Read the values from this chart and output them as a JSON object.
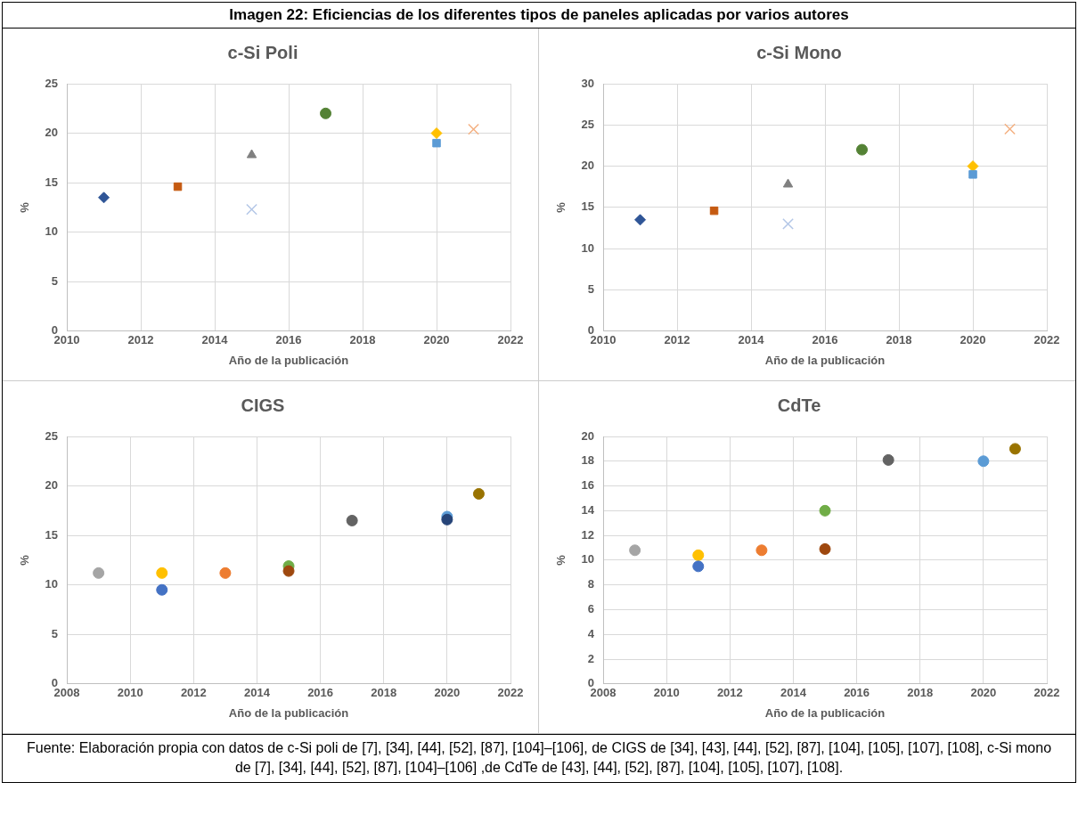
{
  "chart_data": [
    {
      "type": "other",
      "title": "Imagen  22: Eficiencias de los diferentes tipos de paneles aplicadas por varios autores",
      "annotations": [
        "Fuente: Elaboración propia con datos de c-Si poli de [7], [34], [44], [52], [87], [104]–[106], de CIGS de [34], [43], [44], [52], [87], [104], [105], [107], [108], c-Si mono de [7], [34], [44], [52], [87], [104]–[106] ,de CdTe de [43], [44], [52], [87], [104], [105], [107], [108]."
      ]
    },
    {
      "type": "scatter",
      "title": "c-Si Poli",
      "xlabel": "Año de la publicación",
      "ylabel": "%",
      "xlim": [
        2010,
        2022
      ],
      "xticks": [
        2010,
        2012,
        2014,
        2016,
        2018,
        2020,
        2022
      ],
      "ylim": [
        0,
        25
      ],
      "yticks": [
        0,
        5,
        10,
        15,
        20,
        25
      ],
      "grid": true,
      "series": [
        {
          "color": "#2f5597",
          "marker": "diamond",
          "x": [
            2011
          ],
          "values": [
            13.5
          ]
        },
        {
          "color": "#c55a11",
          "marker": "square",
          "x": [
            2013
          ],
          "values": [
            14.6
          ]
        },
        {
          "color": "#808080",
          "marker": "triangle",
          "x": [
            2015
          ],
          "values": [
            17.8
          ]
        },
        {
          "color": "#b4c7e7",
          "marker": "cross",
          "x": [
            2015
          ],
          "values": [
            12.3
          ]
        },
        {
          "color": "#548235",
          "marker": "circle",
          "x": [
            2017
          ],
          "values": [
            22
          ]
        },
        {
          "color": "#ffc000",
          "marker": "diamond",
          "x": [
            2020
          ],
          "values": [
            20
          ]
        },
        {
          "color": "#5b9bd5",
          "marker": "square",
          "x": [
            2020
          ],
          "values": [
            19
          ]
        },
        {
          "color": "#f4b183",
          "marker": "cross",
          "x": [
            2021
          ],
          "values": [
            20.4
          ]
        }
      ]
    },
    {
      "type": "scatter",
      "title": "c-Si Mono",
      "xlabel": "Año de la publicación",
      "ylabel": "%",
      "xlim": [
        2010,
        2022
      ],
      "xticks": [
        2010,
        2012,
        2014,
        2016,
        2018,
        2020,
        2022
      ],
      "ylim": [
        0,
        30
      ],
      "yticks": [
        0,
        5,
        10,
        15,
        20,
        25,
        30
      ],
      "grid": true,
      "series": [
        {
          "color": "#2f5597",
          "marker": "diamond",
          "x": [
            2011
          ],
          "values": [
            13.5
          ]
        },
        {
          "color": "#c55a11",
          "marker": "square",
          "x": [
            2013
          ],
          "values": [
            14.6
          ]
        },
        {
          "color": "#808080",
          "marker": "triangle",
          "x": [
            2015
          ],
          "values": [
            17.8
          ]
        },
        {
          "color": "#b4c7e7",
          "marker": "cross",
          "x": [
            2015
          ],
          "values": [
            13
          ]
        },
        {
          "color": "#548235",
          "marker": "circle",
          "x": [
            2017
          ],
          "values": [
            22
          ]
        },
        {
          "color": "#ffc000",
          "marker": "diamond",
          "x": [
            2020
          ],
          "values": [
            20
          ]
        },
        {
          "color": "#5b9bd5",
          "marker": "square",
          "x": [
            2020
          ],
          "values": [
            19
          ]
        },
        {
          "color": "#f4b183",
          "marker": "cross",
          "x": [
            2021
          ],
          "values": [
            24.5
          ]
        }
      ]
    },
    {
      "type": "scatter",
      "title": "CIGS",
      "xlabel": "Año de la publicación",
      "ylabel": "%",
      "xlim": [
        2008,
        2022
      ],
      "xticks": [
        2008,
        2010,
        2012,
        2014,
        2016,
        2018,
        2020,
        2022
      ],
      "ylim": [
        0,
        25
      ],
      "yticks": [
        0,
        5,
        10,
        15,
        20,
        25
      ],
      "grid": true,
      "marker": "circle",
      "series": [
        {
          "color": "#a5a5a5",
          "x": [
            2009
          ],
          "values": [
            11.2
          ]
        },
        {
          "color": "#ffc000",
          "x": [
            2011
          ],
          "values": [
            11.2
          ]
        },
        {
          "color": "#4472c4",
          "x": [
            2011
          ],
          "values": [
            9.5
          ]
        },
        {
          "color": "#ed7d31",
          "x": [
            2013
          ],
          "values": [
            11.2
          ]
        },
        {
          "color": "#70ad47",
          "x": [
            2015
          ],
          "values": [
            11.9
          ]
        },
        {
          "color": "#9e480e",
          "x": [
            2015
          ],
          "values": [
            11.4
          ]
        },
        {
          "color": "#636363",
          "x": [
            2017
          ],
          "values": [
            16.5
          ]
        },
        {
          "color": "#5b9bd5",
          "x": [
            2020
          ],
          "values": [
            16.9
          ]
        },
        {
          "color": "#264478",
          "x": [
            2020
          ],
          "values": [
            16.6
          ]
        },
        {
          "color": "#997300",
          "x": [
            2021
          ],
          "values": [
            19.2
          ]
        }
      ]
    },
    {
      "type": "scatter",
      "title": "CdTe",
      "xlabel": "Año de la publicación",
      "ylabel": "%",
      "xlim": [
        2008,
        2022
      ],
      "xticks": [
        2008,
        2010,
        2012,
        2014,
        2016,
        2018,
        2020,
        2022
      ],
      "ylim": [
        0,
        20
      ],
      "yticks": [
        0,
        2,
        4,
        6,
        8,
        10,
        12,
        14,
        16,
        18,
        20
      ],
      "grid": true,
      "marker": "circle",
      "series": [
        {
          "color": "#a5a5a5",
          "x": [
            2009
          ],
          "values": [
            10.8
          ]
        },
        {
          "color": "#ffc000",
          "x": [
            2011
          ],
          "values": [
            10.4
          ]
        },
        {
          "color": "#4472c4",
          "x": [
            2011
          ],
          "values": [
            9.5
          ]
        },
        {
          "color": "#ed7d31",
          "x": [
            2013
          ],
          "values": [
            10.8
          ]
        },
        {
          "color": "#70ad47",
          "x": [
            2015
          ],
          "values": [
            14
          ]
        },
        {
          "color": "#9e480e",
          "x": [
            2015
          ],
          "values": [
            10.9
          ]
        },
        {
          "color": "#636363",
          "x": [
            2017
          ],
          "values": [
            18.1
          ]
        },
        {
          "color": "#5b9bd5",
          "x": [
            2020
          ],
          "values": [
            18
          ]
        },
        {
          "color": "#997300",
          "x": [
            2021
          ],
          "values": [
            19
          ]
        }
      ]
    }
  ]
}
